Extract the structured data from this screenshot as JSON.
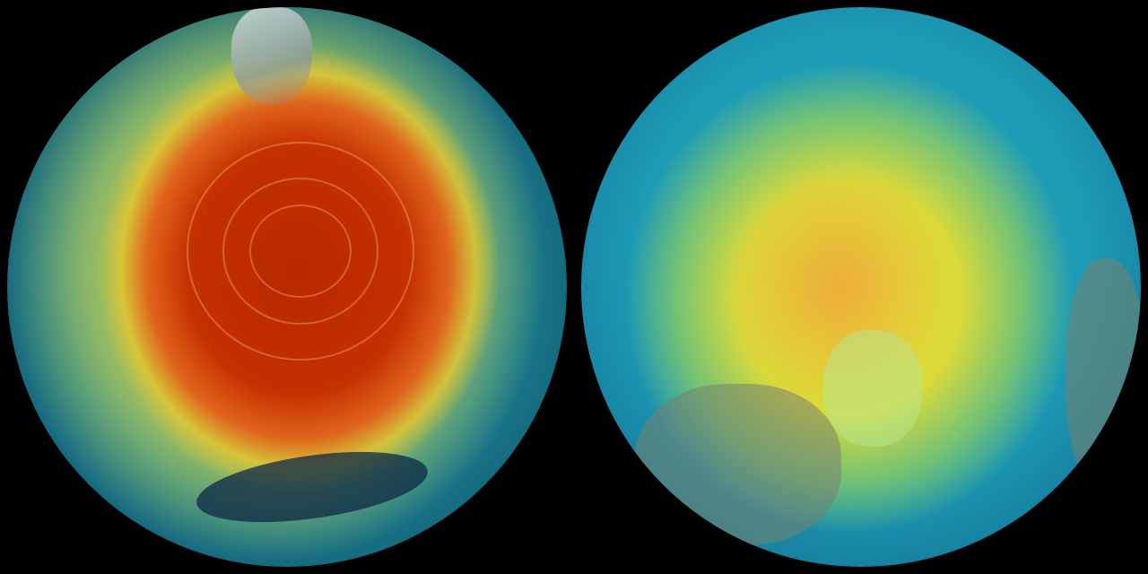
{
  "image": {
    "panels": [
      {
        "name": "left-globe",
        "colors": {
          "core": "#c43000",
          "ring": "#f0c828",
          "background": "#1a8194"
        }
      },
      {
        "name": "right-globe",
        "colors": {
          "core": "#e6e030",
          "ring": "#96d25a",
          "background": "#1d9ab4"
        }
      }
    ],
    "background_color": "#000000"
  }
}
